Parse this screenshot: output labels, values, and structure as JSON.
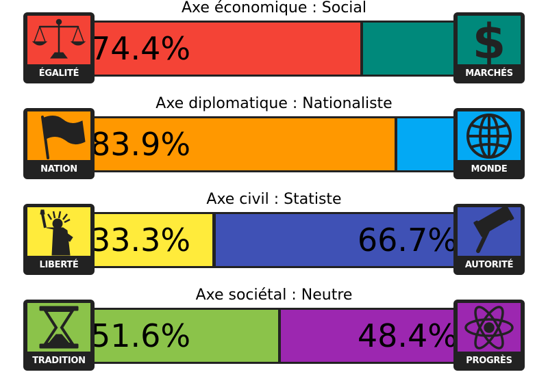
{
  "axes": [
    {
      "title": "Axe économique : Social",
      "left": {
        "label": "ÉGALITÉ",
        "value": 74.4,
        "display": "74.4%",
        "color": "#f44336",
        "icon": "scales-icon"
      },
      "right": {
        "label": "MARCHÉS",
        "value": 25.6,
        "display": "",
        "color": "#00897b",
        "icon": "dollar-icon"
      }
    },
    {
      "title": "Axe diplomatique : Nationaliste",
      "left": {
        "label": "NATION",
        "value": 83.9,
        "display": "83.9%",
        "color": "#ff9800",
        "icon": "flag-icon"
      },
      "right": {
        "label": "MONDE",
        "value": 16.1,
        "display": "",
        "color": "#03a9f4",
        "icon": "globe-icon"
      }
    },
    {
      "title": "Axe civil : Statiste",
      "left": {
        "label": "LIBERTÉ",
        "value": 33.3,
        "display": "33.3%",
        "color": "#ffeb3b",
        "icon": "statue-of-liberty-icon"
      },
      "right": {
        "label": "AUTORITÉ",
        "value": 66.7,
        "display": "66.7%",
        "color": "#3f51b5",
        "icon": "gavel-icon"
      }
    },
    {
      "title": "Axe sociétal : Neutre",
      "left": {
        "label": "TRADITION",
        "value": 51.6,
        "display": "51.6%",
        "color": "#8bc34a",
        "icon": "hourglass-icon"
      },
      "right": {
        "label": "PROGRÈS",
        "value": 48.4,
        "display": "48.4%",
        "color": "#9c27b0",
        "icon": "atom-icon"
      }
    }
  ]
}
